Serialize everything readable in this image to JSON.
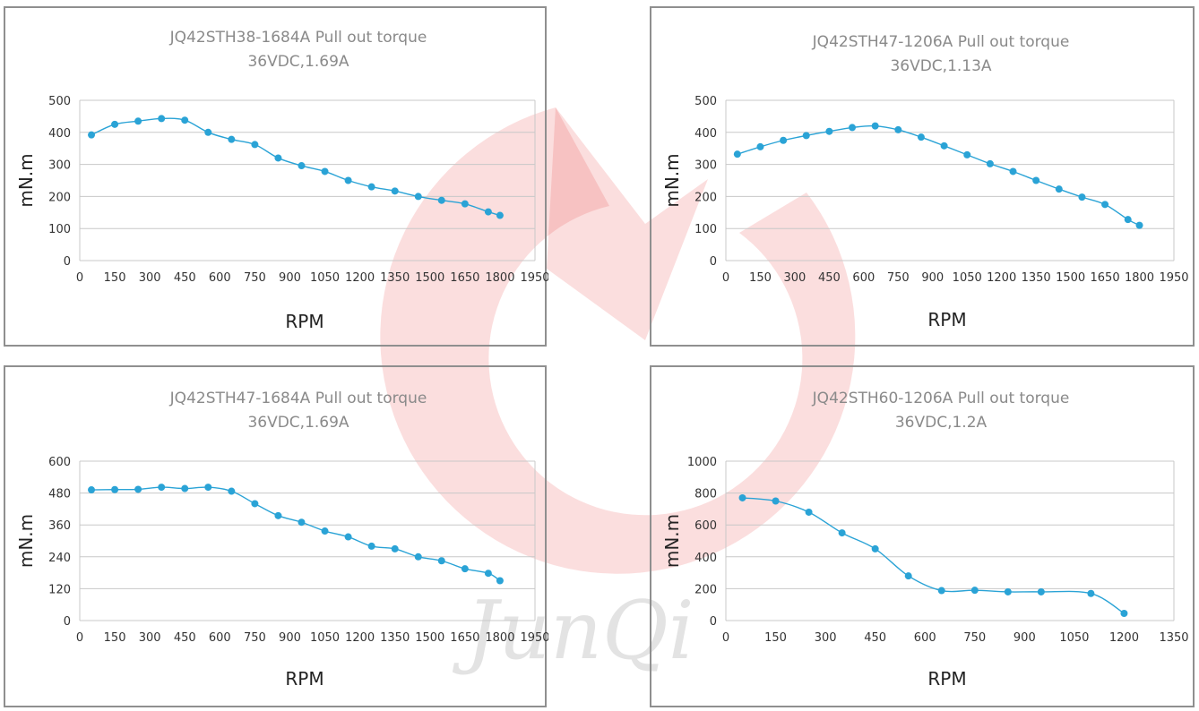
{
  "watermark": {
    "brand_text": "JunQi",
    "color": "#e63c3c"
  },
  "chart_data": [
    {
      "type": "line",
      "title": "JQ42STH38-1684A Pull out torque",
      "subtitle": "36VDC,1.69A",
      "xlabel": "RPM",
      "ylabel": "mN.m",
      "xlim": [
        0,
        1950
      ],
      "ylim": [
        0,
        500
      ],
      "x_ticks": [
        0,
        150,
        300,
        450,
        600,
        750,
        900,
        1050,
        1200,
        1350,
        1500,
        1650,
        1800,
        1950
      ],
      "y_ticks": [
        0,
        100,
        200,
        300,
        400,
        500
      ],
      "grid": true,
      "series": [
        {
          "color": "#2aa3d6",
          "x": [
            50,
            150,
            250,
            350,
            450,
            550,
            650,
            750,
            850,
            950,
            1050,
            1150,
            1250,
            1350,
            1450,
            1550,
            1650,
            1750,
            1800
          ],
          "y": [
            392,
            425,
            435,
            443,
            438,
            400,
            378,
            362,
            320,
            296,
            278,
            250,
            230,
            217,
            200,
            188,
            177,
            152,
            141
          ]
        }
      ]
    },
    {
      "type": "line",
      "title": "JQ42STH47-1206A Pull out torque",
      "subtitle": "36VDC,1.13A",
      "xlabel": "RPM",
      "ylabel": "mN.m",
      "xlim": [
        0,
        1950
      ],
      "ylim": [
        0,
        500
      ],
      "x_ticks": [
        0,
        150,
        300,
        450,
        600,
        750,
        900,
        1050,
        1200,
        1350,
        1500,
        1650,
        1800,
        1950
      ],
      "y_ticks": [
        0,
        100,
        200,
        300,
        400,
        500
      ],
      "grid": true,
      "series": [
        {
          "color": "#2aa3d6",
          "x": [
            50,
            150,
            250,
            350,
            450,
            550,
            650,
            750,
            850,
            950,
            1050,
            1150,
            1250,
            1350,
            1450,
            1550,
            1650,
            1750,
            1800
          ],
          "y": [
            332,
            355,
            375,
            390,
            403,
            415,
            420,
            408,
            385,
            358,
            330,
            302,
            278,
            250,
            223,
            198,
            175,
            128,
            110
          ]
        }
      ]
    },
    {
      "type": "line",
      "title": "JQ42STH47-1684A Pull out torque",
      "subtitle": "36VDC,1.69A",
      "xlabel": "RPM",
      "ylabel": "mN.m",
      "xlim": [
        0,
        1950
      ],
      "ylim": [
        0,
        600
      ],
      "x_ticks": [
        0,
        150,
        300,
        450,
        600,
        750,
        900,
        1050,
        1200,
        1350,
        1500,
        1650,
        1800,
        1950
      ],
      "y_ticks": [
        0,
        120,
        240,
        360,
        480,
        600
      ],
      "grid": true,
      "series": [
        {
          "color": "#2aa3d6",
          "x": [
            50,
            150,
            250,
            350,
            450,
            550,
            650,
            750,
            850,
            950,
            1050,
            1150,
            1250,
            1350,
            1450,
            1550,
            1650,
            1750,
            1800
          ],
          "y": [
            492,
            493,
            494,
            502,
            497,
            502,
            487,
            440,
            395,
            370,
            337,
            315,
            280,
            270,
            240,
            225,
            195,
            178,
            150
          ]
        }
      ]
    },
    {
      "type": "line",
      "title": "JQ42STH60-1206A Pull out torque",
      "subtitle": "36VDC,1.2A",
      "xlabel": "RPM",
      "ylabel": "mN.m",
      "xlim": [
        0,
        1350
      ],
      "ylim": [
        0,
        1000
      ],
      "x_ticks": [
        0,
        150,
        300,
        450,
        600,
        750,
        900,
        1050,
        1200,
        1350
      ],
      "y_ticks": [
        0,
        200,
        400,
        600,
        800,
        1000
      ],
      "grid": true,
      "series": [
        {
          "color": "#2aa3d6",
          "x": [
            50,
            150,
            250,
            350,
            450,
            550,
            650,
            750,
            850,
            950,
            1100,
            1200
          ],
          "y": [
            770,
            750,
            680,
            550,
            450,
            280,
            188,
            190,
            180,
            180,
            170,
            45
          ]
        }
      ]
    }
  ]
}
